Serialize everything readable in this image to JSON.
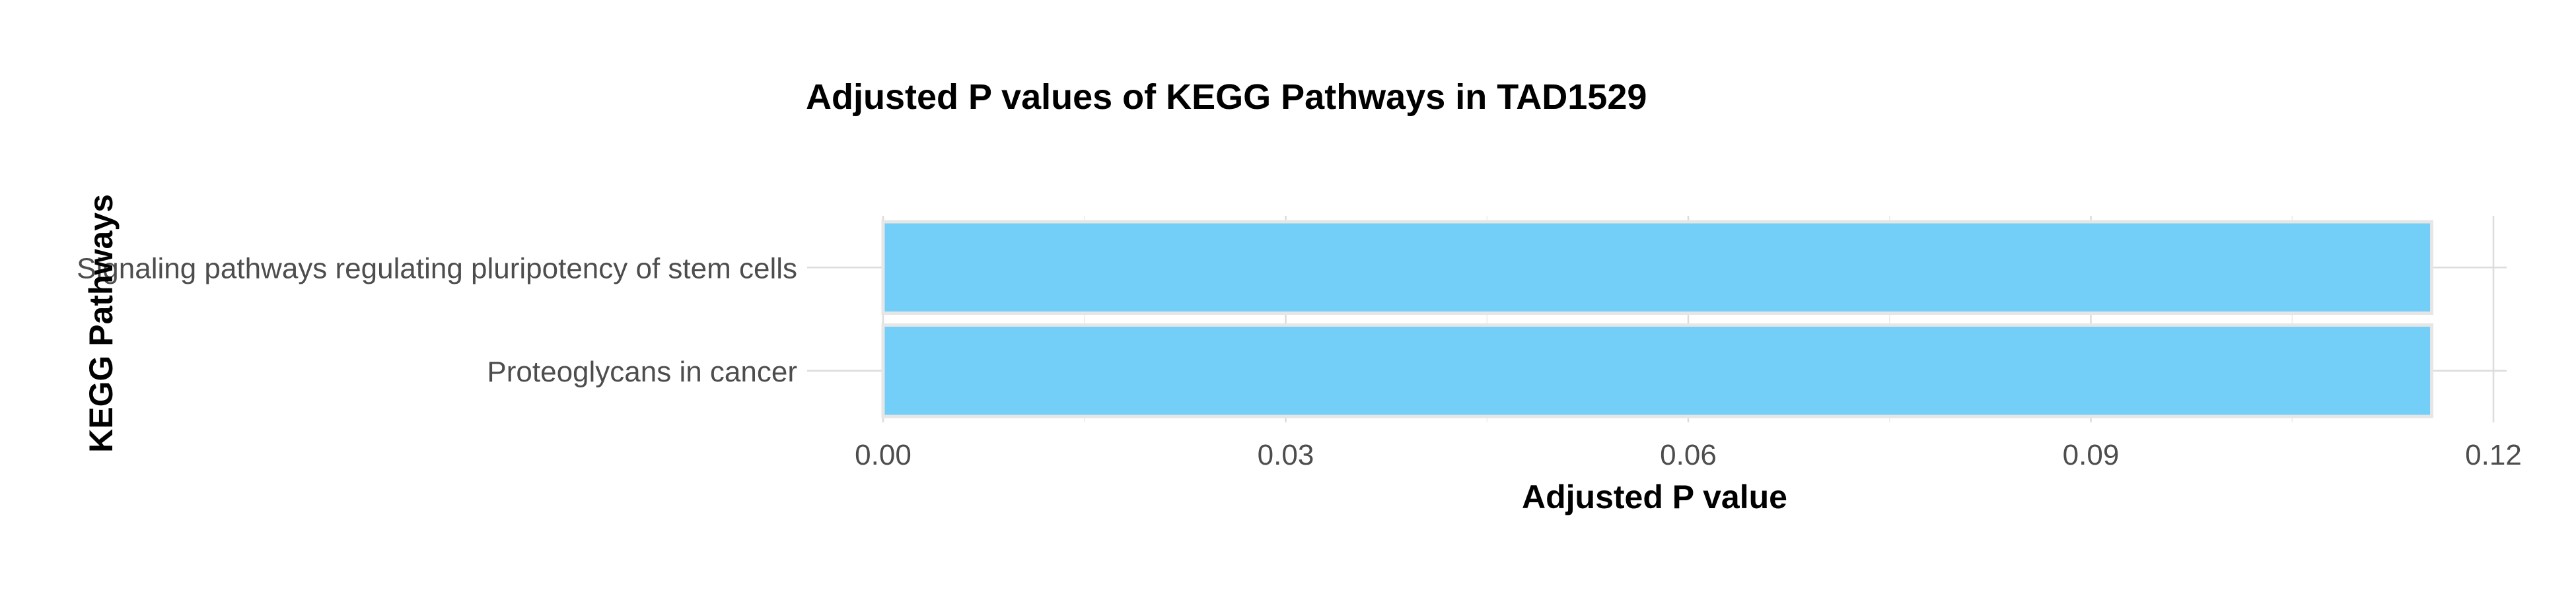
{
  "chart_data": {
    "type": "bar",
    "orientation": "horizontal",
    "title": "Adjusted P values of KEGG Pathways in TAD1529",
    "xlabel": "Adjusted P value",
    "ylabel": "KEGG Pathways",
    "categories": [
      "Signaling pathways regulating pluripotency of stem cells",
      "Proteoglycans in cancer"
    ],
    "values": [
      0.1154,
      0.1154
    ],
    "xlim": [
      0,
      0.12
    ],
    "xticks": [
      0,
      0.03,
      0.06,
      0.09,
      0.12
    ],
    "xtick_labels": [
      "0.00",
      "0.03",
      "0.06",
      "0.09",
      "0.12"
    ],
    "grid": true,
    "legend": false,
    "bar_color": "#74cff8"
  }
}
